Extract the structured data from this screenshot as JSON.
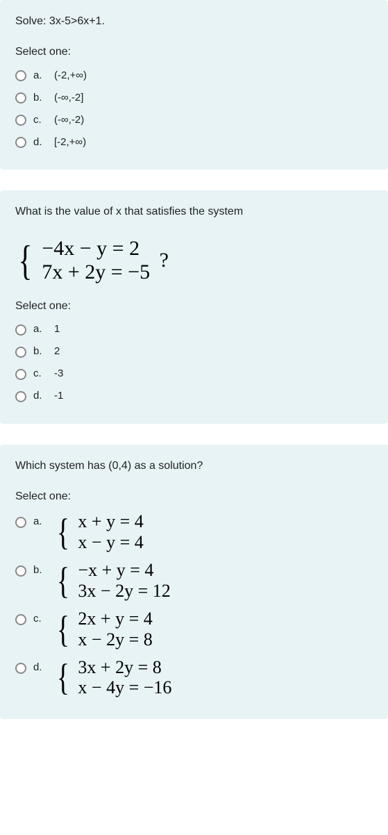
{
  "questions": [
    {
      "prompt": "Solve: 3x-5>6x+1.",
      "selectLabel": "Select one:",
      "choices": [
        {
          "letter": "a.",
          "text": "(-2,+∞)"
        },
        {
          "letter": "b.",
          "text": "(-∞,-2]"
        },
        {
          "letter": "c.",
          "text": "(-∞,-2)"
        },
        {
          "letter": "d.",
          "text": "[-2,+∞)"
        }
      ]
    },
    {
      "prompt": "What is the value of x that satisfies the system",
      "system": {
        "line1": "−4x − y = 2",
        "line2": "7x + 2y = −5",
        "suffix": "?"
      },
      "selectLabel": "Select one:",
      "choices": [
        {
          "letter": "a.",
          "text": "1"
        },
        {
          "letter": "b.",
          "text": "2"
        },
        {
          "letter": "c.",
          "text": "-3"
        },
        {
          "letter": "d.",
          "text": "-1"
        }
      ]
    },
    {
      "prompt": "Which system has (0,4) as a solution?",
      "selectLabel": "Select one:",
      "choices": [
        {
          "letter": "a.",
          "system": {
            "line1": "x + y = 4",
            "line2": "x − y = 4"
          }
        },
        {
          "letter": "b.",
          "system": {
            "line1": "−x + y = 4",
            "line2": "3x − 2y = 12"
          }
        },
        {
          "letter": "c.",
          "system": {
            "line1": "2x + y = 4",
            "line2": "x − 2y = 8"
          }
        },
        {
          "letter": "d.",
          "system": {
            "line1": "3x + 2y = 8",
            "line2": "x − 4y = −16"
          }
        }
      ]
    }
  ],
  "colors": {
    "cardBg": "#e7f3f5",
    "text": "#222222",
    "radioBorder": "#888888"
  }
}
